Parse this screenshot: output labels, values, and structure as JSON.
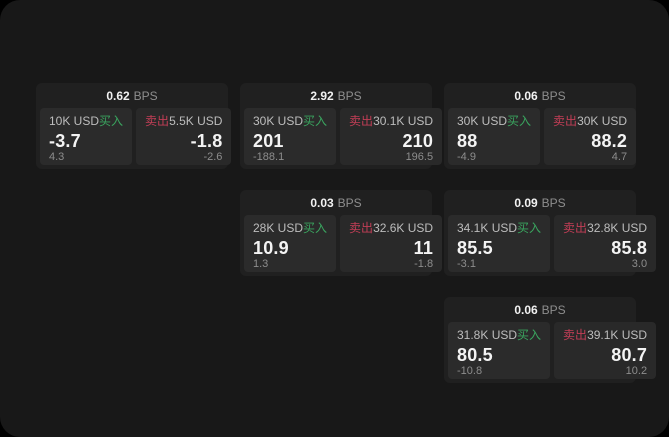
{
  "labels": {
    "bps_unit": "BPS",
    "buy": "买入",
    "sell": "卖出"
  },
  "colors": {
    "outer_background": "#000000",
    "surface_background": "#181818",
    "card_background": "#202020",
    "panel_background": "#2b2b2b",
    "buy_green": "#3aa55f",
    "sell_red": "#c23e56",
    "value_white": "#f4f4f4",
    "label_gray": "#bdbdbd",
    "muted_gray": "#8d8d8d"
  },
  "cards": [
    {
      "bps": "0.62",
      "buy": {
        "amount": "10K USD",
        "value": "-3.7",
        "sub": "4.3"
      },
      "sell": {
        "amount": "5.5K USD",
        "value": "-1.8",
        "sub": "-2.6"
      }
    },
    {
      "bps": "2.92",
      "buy": {
        "amount": "30K USD",
        "value": "201",
        "sub": "-188.1"
      },
      "sell": {
        "amount": "30.1K USD",
        "value": "210",
        "sub": "196.5"
      }
    },
    {
      "bps": "0.06",
      "buy": {
        "amount": "30K USD",
        "value": "88",
        "sub": "-4.9"
      },
      "sell": {
        "amount": "30K USD",
        "value": "88.2",
        "sub": "4.7"
      }
    },
    {
      "bps": "0.03",
      "buy": {
        "amount": "28K USD",
        "value": "10.9",
        "sub": "1.3"
      },
      "sell": {
        "amount": "32.6K USD",
        "value": "11",
        "sub": "-1.8"
      }
    },
    {
      "bps": "0.09",
      "buy": {
        "amount": "34.1K USD",
        "value": "85.5",
        "sub": "-3.1"
      },
      "sell": {
        "amount": "32.8K USD",
        "value": "85.8",
        "sub": "3.0"
      }
    },
    {
      "bps": "0.06",
      "buy": {
        "amount": "31.8K USD",
        "value": "80.5",
        "sub": "-10.8"
      },
      "sell": {
        "amount": "39.1K USD",
        "value": "80.7",
        "sub": "10.2"
      }
    }
  ]
}
